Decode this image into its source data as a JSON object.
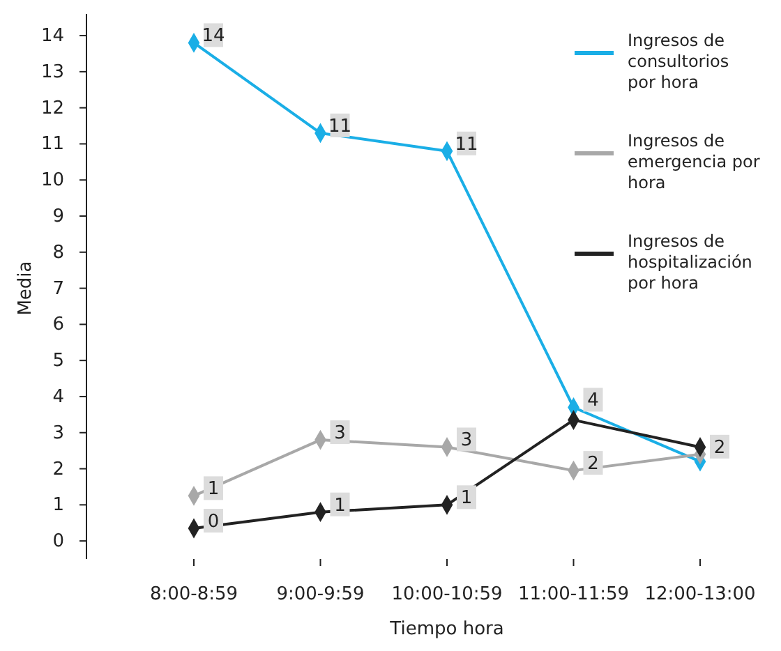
{
  "chart_data": {
    "type": "line",
    "xlabel": "Tiempo hora",
    "ylabel": "Media",
    "categories": [
      "8:00-8:59",
      "9:00-9:59",
      "10:00-10:59",
      "11:00-11:59",
      "12:00-13:00"
    ],
    "series": [
      {
        "name": "Ingresos de consultorios por hora",
        "color": "#1aaee6",
        "values": [
          13.8,
          11.3,
          10.8,
          3.7,
          2.2
        ],
        "value_labels": [
          "14",
          "11",
          "11",
          "4",
          null
        ]
      },
      {
        "name": "Ingresos de emergencia por hora",
        "color": "#a8a8a8",
        "values": [
          1.25,
          2.8,
          2.6,
          1.95,
          2.4
        ],
        "value_labels": [
          "1",
          "3",
          "3",
          "2",
          "2"
        ]
      },
      {
        "name": "Ingresos de hospitalización por hora",
        "color": "#222222",
        "values": [
          0.35,
          0.8,
          1.0,
          3.35,
          2.6
        ],
        "value_labels": [
          "0",
          "1",
          "1",
          null,
          null
        ]
      }
    ],
    "ylim": [
      -0.5,
      14.6
    ],
    "yticks": [
      0,
      1,
      2,
      3,
      4,
      5,
      6,
      7,
      8,
      9,
      10,
      11,
      12,
      13,
      14
    ],
    "grid": false,
    "legend": "top right",
    "marker": "diamond",
    "line_style": "solid"
  }
}
